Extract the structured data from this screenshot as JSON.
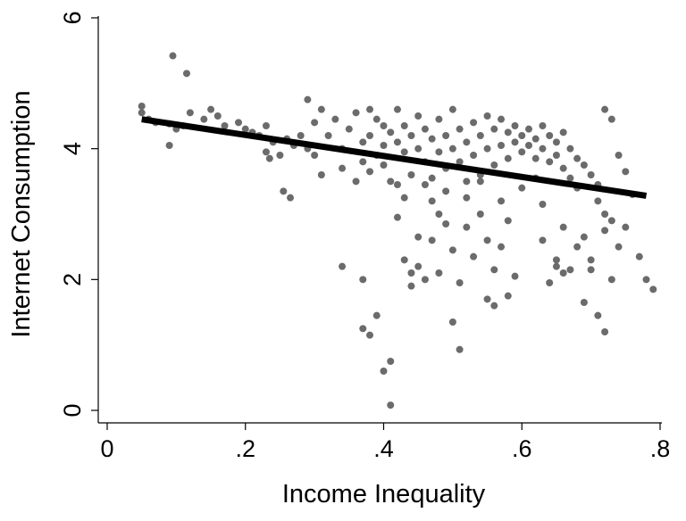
{
  "chart_data": {
    "type": "scatter",
    "title": "",
    "xlabel": "Income Inequality",
    "ylabel": "Internet Consumption",
    "xlim": [
      0,
      0.8
    ],
    "ylim": [
      0,
      6
    ],
    "x_ticks": [
      {
        "value": 0,
        "label": "0"
      },
      {
        "value": 0.2,
        "label": ".2"
      },
      {
        "value": 0.4,
        "label": ".4"
      },
      {
        "value": 0.6,
        "label": ".6"
      },
      {
        "value": 0.8,
        "label": ".8"
      }
    ],
    "y_ticks": [
      {
        "value": 0,
        "label": "0"
      },
      {
        "value": 2,
        "label": "2"
      },
      {
        "value": 4,
        "label": "4"
      },
      {
        "value": 6,
        "label": "6"
      }
    ],
    "grid": false,
    "legend": "none",
    "point_color": "#6b6b6b",
    "fit_line": {
      "color": "#000000",
      "x": [
        0.05,
        0.78
      ],
      "y": [
        4.45,
        3.28
      ]
    },
    "series": [
      {
        "points": [
          [
            0.05,
            4.65
          ],
          [
            0.05,
            4.55
          ],
          [
            0.06,
            4.45
          ],
          [
            0.07,
            4.4
          ],
          [
            0.09,
            4.38
          ],
          [
            0.095,
            5.42
          ],
          [
            0.1,
            4.3
          ],
          [
            0.11,
            4.35
          ],
          [
            0.09,
            4.05
          ],
          [
            0.115,
            5.15
          ],
          [
            0.12,
            4.55
          ],
          [
            0.14,
            4.45
          ],
          [
            0.15,
            4.6
          ],
          [
            0.16,
            4.5
          ],
          [
            0.17,
            4.35
          ],
          [
            0.19,
            4.4
          ],
          [
            0.2,
            4.3
          ],
          [
            0.21,
            4.25
          ],
          [
            0.22,
            4.2
          ],
          [
            0.23,
            4.35
          ],
          [
            0.24,
            4.1
          ],
          [
            0.23,
            3.95
          ],
          [
            0.235,
            3.85
          ],
          [
            0.25,
            3.9
          ],
          [
            0.26,
            4.15
          ],
          [
            0.255,
            3.35
          ],
          [
            0.265,
            3.25
          ],
          [
            0.27,
            4.05
          ],
          [
            0.28,
            4.2
          ],
          [
            0.29,
            4.0
          ],
          [
            0.3,
            4.4
          ],
          [
            0.29,
            4.75
          ],
          [
            0.31,
            4.6
          ],
          [
            0.32,
            4.2
          ],
          [
            0.3,
            3.9
          ],
          [
            0.31,
            3.6
          ],
          [
            0.33,
            4.45
          ],
          [
            0.34,
            4.0
          ],
          [
            0.35,
            4.3
          ],
          [
            0.34,
            3.7
          ],
          [
            0.36,
            4.55
          ],
          [
            0.36,
            3.5
          ],
          [
            0.37,
            4.1
          ],
          [
            0.37,
            3.8
          ],
          [
            0.38,
            4.6
          ],
          [
            0.38,
            4.2
          ],
          [
            0.39,
            4.45
          ],
          [
            0.39,
            3.9
          ],
          [
            0.38,
            3.65
          ],
          [
            0.4,
            4.35
          ],
          [
            0.4,
            4.05
          ],
          [
            0.41,
            4.25
          ],
          [
            0.4,
            3.75
          ],
          [
            0.41,
            3.5
          ],
          [
            0.42,
            4.1
          ],
          [
            0.42,
            4.6
          ],
          [
            0.43,
            4.35
          ],
          [
            0.43,
            3.95
          ],
          [
            0.44,
            4.2
          ],
          [
            0.44,
            3.6
          ],
          [
            0.45,
            4.5
          ],
          [
            0.45,
            4.0
          ],
          [
            0.46,
            4.3
          ],
          [
            0.46,
            3.8
          ],
          [
            0.47,
            4.15
          ],
          [
            0.47,
            3.55
          ],
          [
            0.48,
            4.45
          ],
          [
            0.48,
            3.95
          ],
          [
            0.49,
            4.2
          ],
          [
            0.49,
            3.7
          ],
          [
            0.5,
            4.6
          ],
          [
            0.5,
            4.0
          ],
          [
            0.51,
            4.3
          ],
          [
            0.51,
            3.8
          ],
          [
            0.52,
            4.1
          ],
          [
            0.52,
            3.5
          ],
          [
            0.53,
            4.4
          ],
          [
            0.53,
            3.9
          ],
          [
            0.54,
            4.2
          ],
          [
            0.54,
            3.6
          ],
          [
            0.55,
            4.5
          ],
          [
            0.55,
            4.0
          ],
          [
            0.56,
            4.3
          ],
          [
            0.56,
            3.75
          ],
          [
            0.57,
            4.45
          ],
          [
            0.57,
            4.05
          ],
          [
            0.58,
            4.25
          ],
          [
            0.58,
            3.85
          ],
          [
            0.59,
            4.35
          ],
          [
            0.59,
            4.1
          ],
          [
            0.6,
            4.2
          ],
          [
            0.6,
            3.95
          ],
          [
            0.61,
            4.3
          ],
          [
            0.61,
            4.05
          ],
          [
            0.62,
            4.15
          ],
          [
            0.62,
            3.85
          ],
          [
            0.63,
            4.35
          ],
          [
            0.63,
            4.0
          ],
          [
            0.64,
            4.2
          ],
          [
            0.64,
            3.8
          ],
          [
            0.65,
            4.1
          ],
          [
            0.65,
            3.9
          ],
          [
            0.66,
            4.25
          ],
          [
            0.66,
            3.7
          ],
          [
            0.67,
            4.0
          ],
          [
            0.67,
            3.55
          ],
          [
            0.68,
            3.85
          ],
          [
            0.68,
            3.4
          ],
          [
            0.69,
            3.75
          ],
          [
            0.7,
            3.6
          ],
          [
            0.71,
            3.45
          ],
          [
            0.72,
            4.6
          ],
          [
            0.73,
            4.45
          ],
          [
            0.74,
            3.9
          ],
          [
            0.75,
            3.65
          ],
          [
            0.76,
            3.3
          ],
          [
            0.34,
            2.2
          ],
          [
            0.37,
            2.0
          ],
          [
            0.37,
            1.25
          ],
          [
            0.38,
            1.15
          ],
          [
            0.39,
            1.45
          ],
          [
            0.4,
            0.6
          ],
          [
            0.41,
            0.75
          ],
          [
            0.41,
            0.08
          ],
          [
            0.42,
            2.95
          ],
          [
            0.43,
            2.3
          ],
          [
            0.44,
            2.1
          ],
          [
            0.44,
            1.9
          ],
          [
            0.45,
            2.65
          ],
          [
            0.45,
            2.2
          ],
          [
            0.46,
            2.0
          ],
          [
            0.47,
            2.6
          ],
          [
            0.48,
            2.1
          ],
          [
            0.49,
            2.85
          ],
          [
            0.5,
            2.45
          ],
          [
            0.5,
            1.35
          ],
          [
            0.51,
            0.93
          ],
          [
            0.51,
            1.95
          ],
          [
            0.52,
            2.8
          ],
          [
            0.53,
            2.35
          ],
          [
            0.54,
            3.0
          ],
          [
            0.55,
            2.6
          ],
          [
            0.55,
            1.7
          ],
          [
            0.56,
            1.6
          ],
          [
            0.56,
            2.15
          ],
          [
            0.57,
            2.5
          ],
          [
            0.58,
            1.75
          ],
          [
            0.58,
            2.9
          ],
          [
            0.59,
            2.05
          ],
          [
            0.63,
            2.6
          ],
          [
            0.64,
            1.95
          ],
          [
            0.65,
            2.3
          ],
          [
            0.66,
            2.8
          ],
          [
            0.67,
            2.15
          ],
          [
            0.68,
            2.5
          ],
          [
            0.69,
            1.65
          ],
          [
            0.7,
            2.3
          ],
          [
            0.71,
            1.45
          ],
          [
            0.72,
            1.2
          ],
          [
            0.73,
            2.0
          ],
          [
            0.74,
            2.5
          ],
          [
            0.75,
            2.8
          ],
          [
            0.77,
            2.35
          ],
          [
            0.78,
            2.0
          ],
          [
            0.79,
            1.85
          ],
          [
            0.65,
            2.2
          ],
          [
            0.66,
            2.1
          ],
          [
            0.69,
            2.65
          ],
          [
            0.7,
            2.15
          ],
          [
            0.72,
            2.75
          ],
          [
            0.71,
            3.2
          ],
          [
            0.72,
            3.0
          ],
          [
            0.73,
            2.9
          ],
          [
            0.52,
            3.25
          ],
          [
            0.54,
            3.5
          ],
          [
            0.57,
            3.2
          ],
          [
            0.6,
            3.4
          ],
          [
            0.62,
            3.55
          ],
          [
            0.63,
            3.15
          ],
          [
            0.46,
            3.45
          ],
          [
            0.47,
            3.2
          ],
          [
            0.48,
            3.0
          ],
          [
            0.49,
            3.35
          ],
          [
            0.43,
            3.25
          ],
          [
            0.42,
            3.45
          ]
        ]
      }
    ]
  }
}
